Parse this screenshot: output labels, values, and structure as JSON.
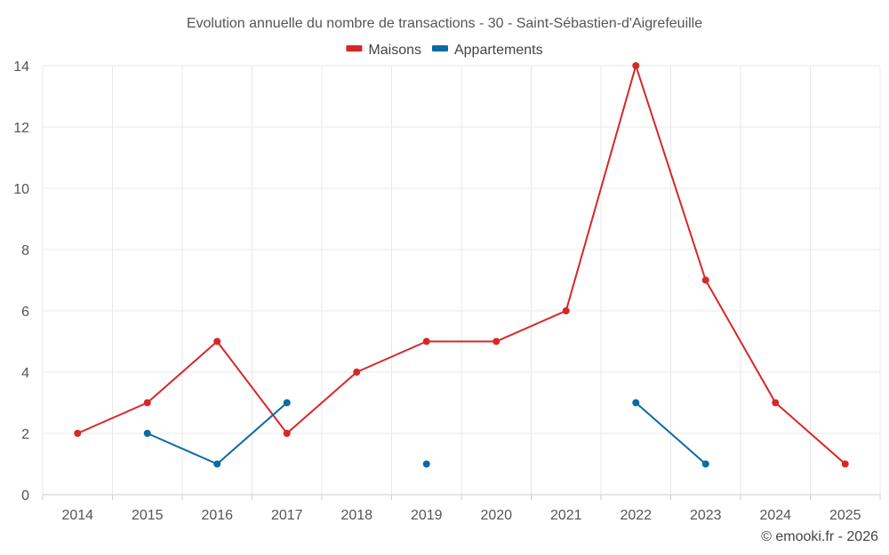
{
  "chart_data": {
    "type": "line",
    "title": "Evolution annuelle du nombre de transactions - 30 - Saint-Sébastien-d'Aigrefeuille",
    "categories": [
      "2014",
      "2015",
      "2016",
      "2017",
      "2018",
      "2019",
      "2020",
      "2021",
      "2022",
      "2023",
      "2024",
      "2025"
    ],
    "series": [
      {
        "name": "Maisons",
        "color": "#d62728",
        "values": [
          2,
          3,
          5,
          2,
          4,
          5,
          5,
          6,
          14,
          7,
          3,
          1
        ]
      },
      {
        "name": "Appartements",
        "color": "#0b6aa2",
        "values": [
          null,
          2,
          1,
          3,
          null,
          1,
          null,
          null,
          3,
          1,
          null,
          null
        ]
      }
    ],
    "ylim": [
      0,
      14
    ],
    "yticks": [
      0,
      2,
      4,
      6,
      8,
      10,
      12,
      14
    ],
    "xlabel": "",
    "ylabel": "",
    "grid": true,
    "legend": "top-center"
  },
  "credit": "© emooki.fr - 2026"
}
